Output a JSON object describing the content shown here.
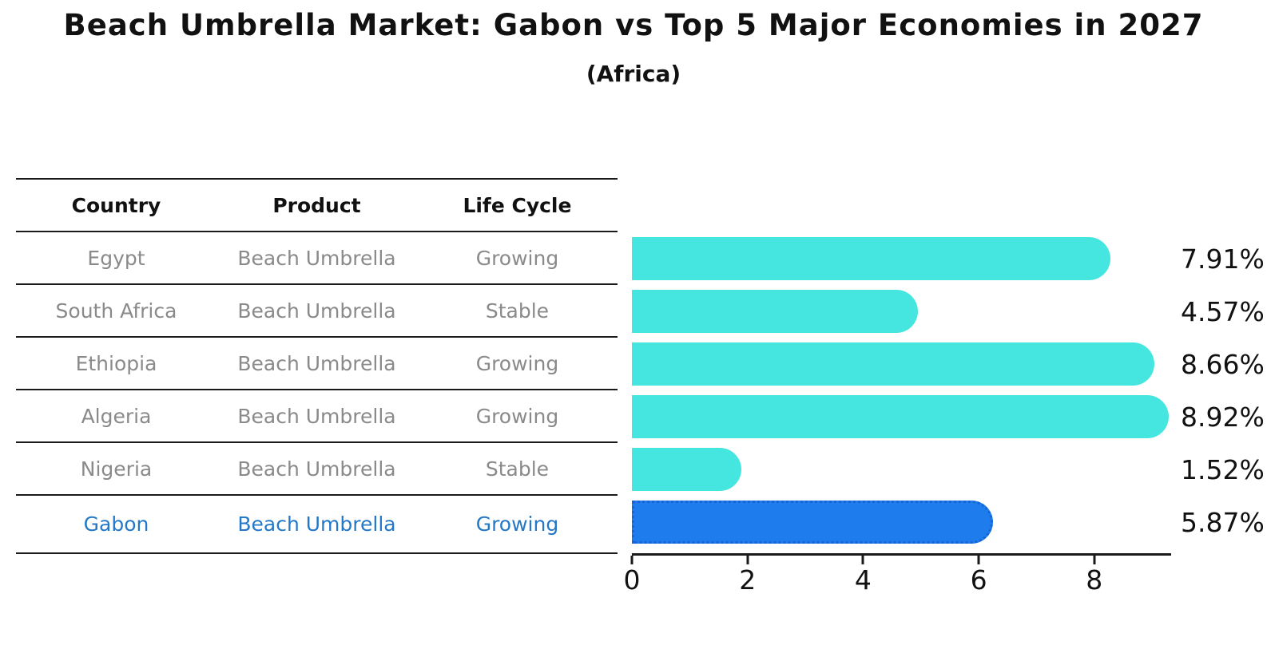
{
  "title": "Beach Umbrella Market: Gabon vs Top 5 Major Economies in 2027",
  "subtitle": "(Africa)",
  "table": {
    "headers": [
      "Country",
      "Product",
      "Life Cycle"
    ],
    "rows": [
      {
        "country": "Egypt",
        "product": "Beach Umbrella",
        "life_cycle": "Growing",
        "highlight": false
      },
      {
        "country": "South Africa",
        "product": "Beach Umbrella",
        "life_cycle": "Stable",
        "highlight": false
      },
      {
        "country": "Ethiopia",
        "product": "Beach Umbrella",
        "life_cycle": "Growing",
        "highlight": false
      },
      {
        "country": "Algeria",
        "product": "Beach Umbrella",
        "life_cycle": "Growing",
        "highlight": false
      },
      {
        "country": "Nigeria",
        "product": "Beach Umbrella",
        "life_cycle": "Stable",
        "highlight": false
      },
      {
        "country": "Gabon",
        "product": "Beach Umbrella",
        "life_cycle": "Growing",
        "highlight": true
      }
    ]
  },
  "chart_data": {
    "type": "bar",
    "orientation": "horizontal",
    "title": "Beach Umbrella Market: Gabon vs Top 5 Major Economies in 2027",
    "subtitle": "(Africa)",
    "categories": [
      "Egypt",
      "South Africa",
      "Ethiopia",
      "Algeria",
      "Nigeria",
      "Gabon"
    ],
    "values": [
      7.91,
      4.57,
      8.66,
      8.92,
      1.52,
      5.87
    ],
    "value_labels": [
      "7.91%",
      "4.57%",
      "8.66%",
      "8.92%",
      "1.52%",
      "5.87%"
    ],
    "x_ticks": [
      0,
      2,
      4,
      6,
      8
    ],
    "xlim": [
      0,
      9.33
    ],
    "grid": false,
    "legend": "none",
    "highlight_index": 5,
    "bar_color": "#45E5E0",
    "highlight_bar_color": "#1E7CEC",
    "highlight_border_color": "#1565D8"
  },
  "colors": {
    "background": "#ffffff",
    "header_text": "#111111",
    "row_text": "#8a8a8a",
    "highlight_text": "#2478c8",
    "axis": "#1a1a1a"
  }
}
